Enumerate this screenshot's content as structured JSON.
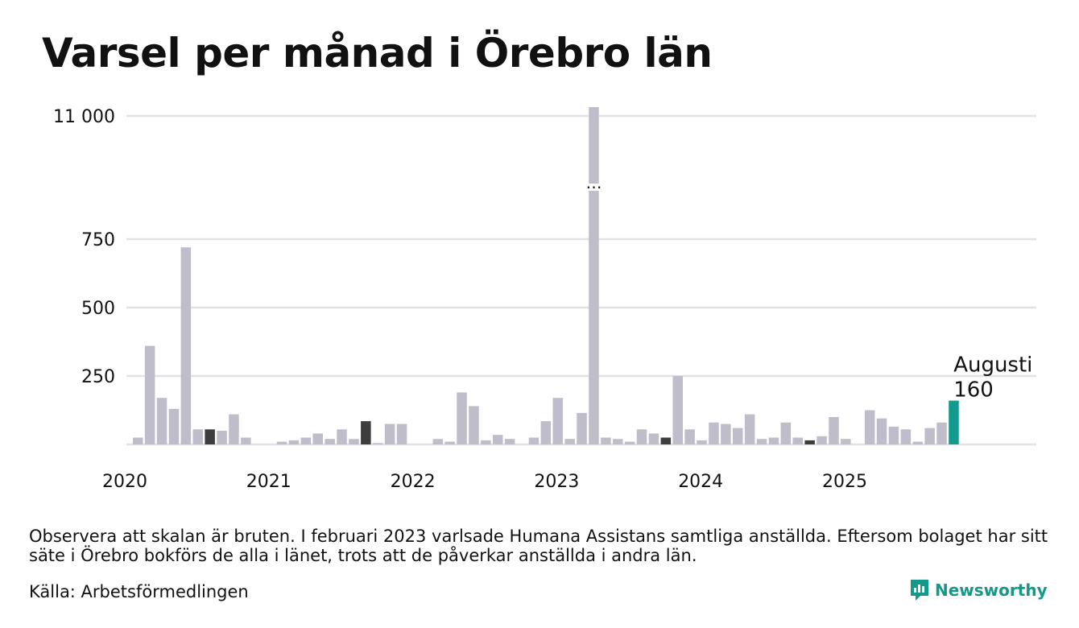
{
  "title": "Varsel per månad i Örebro län",
  "note": "Observera att skalan är bruten. I februari 2023 varlsade Humana Assistans samtliga anställda. Eftersom bolaget har sitt säte i Örebro bokförs de alla i länet, trots att de påverkar anställda i andra län.",
  "source": "Källa: Arbetsförmedlingen",
  "brand": "Newsworthy",
  "colors": {
    "default": "#bfbdca",
    "dark": "#3d3d3d",
    "highlight": "#139a8e",
    "grid": "#e2e2e6"
  },
  "chart_data": {
    "type": "bar",
    "y_ticks": [
      {
        "value": 11000,
        "label": "11 000"
      },
      {
        "value": 750,
        "label": "750"
      },
      {
        "value": 500,
        "label": "500"
      },
      {
        "value": 250,
        "label": "250"
      }
    ],
    "axis_break": {
      "between": [
        750,
        11000
      ],
      "marker": "…"
    },
    "x_labels": [
      "2020",
      "2021",
      "2022",
      "2023",
      "2024",
      "2025"
    ],
    "start": "2020-01",
    "annotation": {
      "month": "Augusti",
      "value": "160"
    },
    "values": [
      25,
      360,
      170,
      130,
      720,
      55,
      55,
      50,
      110,
      25,
      0,
      0,
      10,
      15,
      25,
      40,
      20,
      55,
      20,
      85,
      5,
      75,
      75,
      0,
      0,
      20,
      10,
      190,
      140,
      15,
      35,
      20,
      0,
      25,
      85,
      170,
      20,
      115,
      11000,
      25,
      20,
      10,
      55,
      40,
      25,
      250,
      55,
      15,
      80,
      75,
      60,
      110,
      20,
      25,
      80,
      25,
      15,
      30,
      100,
      20,
      0,
      125,
      95,
      65,
      55,
      10,
      60,
      80,
      160
    ],
    "dark_indices": [
      6,
      19,
      44,
      56
    ],
    "highlight_index": 68
  }
}
